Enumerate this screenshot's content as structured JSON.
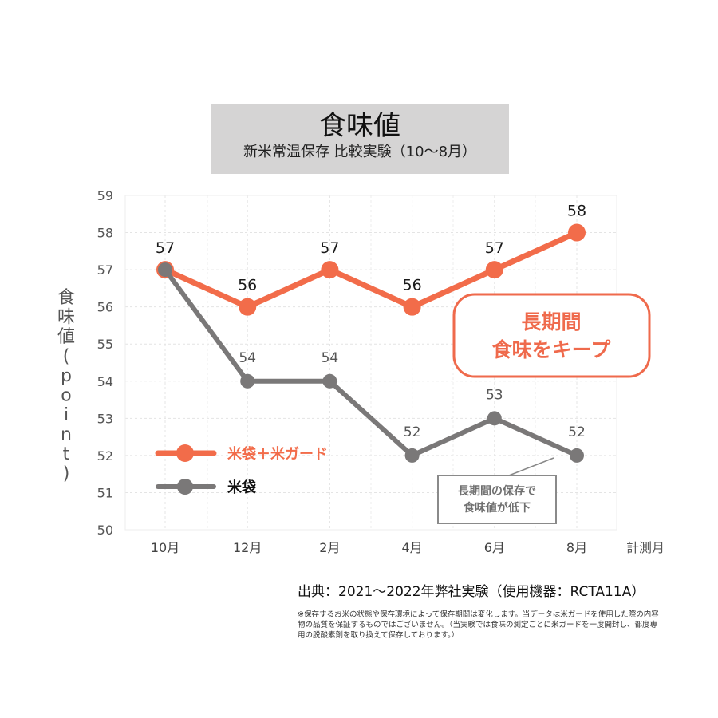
{
  "chart_data": {
    "type": "line",
    "title": "食味値",
    "subtitle": "新米常温保存 比較実験（10〜8月）",
    "ylabel": "食味値(point)",
    "xlabel": "計測月",
    "categories": [
      "10月",
      "12月",
      "2月",
      "4月",
      "6月",
      "8月"
    ],
    "yticks": [
      "50",
      "51",
      "52",
      "53",
      "54",
      "55",
      "56",
      "57",
      "58",
      "59"
    ],
    "ylim": [
      50,
      59
    ],
    "grid": true,
    "legend_position": "bottom-left",
    "series": [
      {
        "name": "米袋＋米ガード",
        "values": [
          57,
          56,
          57,
          56,
          57,
          58
        ],
        "labels": [
          "57",
          "56",
          "57",
          "56",
          "57",
          "58"
        ],
        "color": "#f26c4a"
      },
      {
        "name": "米袋",
        "values": [
          57,
          54,
          54,
          52,
          53,
          52
        ],
        "labels": [
          "",
          "54",
          "54",
          "52",
          "53",
          "52"
        ],
        "color": "#7a7878"
      }
    ],
    "annotations": [
      {
        "text": [
          "長期間",
          "食味をキープ"
        ],
        "color": "#ef6a4c"
      },
      {
        "text": [
          "長期間の保存で",
          "食味値が低下"
        ],
        "color": "#6f6f6f"
      }
    ]
  },
  "footer": {
    "source": "出典：2021〜2022年弊社実験（使用機器：RCTA11A）",
    "disclaimer": "※保存するお米の状態や保存環境によって保存期間は変化します。当データは米ガードを使用した際の内容物の品質を保証するものではございません。（当実験では食味の測定ごとに米ガードを一度開封し、都度専用の脱酸素剤を取り換えて保存しております。）"
  }
}
